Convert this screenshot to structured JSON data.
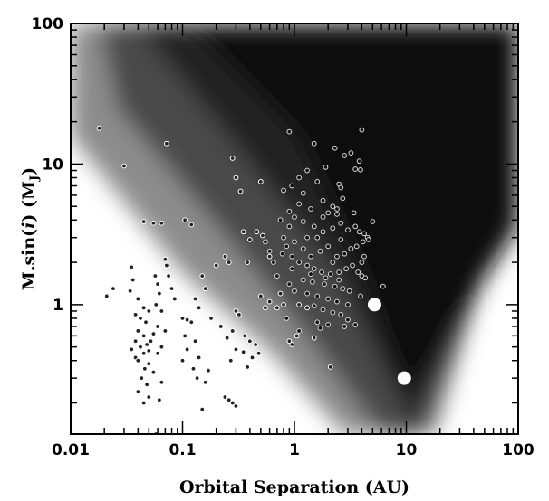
{
  "chart_data": {
    "type": "scatter",
    "xlabel": "Orbital Separation (AU)",
    "ylabel_parts": [
      "M.sin(",
      "i",
      ") (M",
      "J",
      ")"
    ],
    "x_scale": "log",
    "y_scale": "log",
    "xlim": [
      0.01,
      100
    ],
    "ylim": [
      0.12,
      100
    ],
    "x_ticks": [
      {
        "value": 0.01,
        "label": "0.01"
      },
      {
        "value": 0.1,
        "label": "0.1"
      },
      {
        "value": 1,
        "label": "1"
      },
      {
        "value": 10,
        "label": "10"
      },
      {
        "value": 100,
        "label": "100"
      }
    ],
    "y_ticks": [
      {
        "value": 1,
        "label": "1"
      },
      {
        "value": 10,
        "label": "10"
      },
      {
        "value": 100,
        "label": "100"
      }
    ],
    "background": {
      "type": "heatmap",
      "colormap": "grayscale",
      "description_values": "detection probability greyscale, dark = high"
    },
    "series": [
      {
        "marker": "small-dot",
        "points": [
          [
            0.018,
            18
          ],
          [
            0.03,
            9.7
          ],
          [
            0.072,
            14
          ],
          [
            0.024,
            1.3
          ],
          [
            0.021,
            1.15
          ],
          [
            0.035,
            1.85
          ],
          [
            0.036,
            1.5
          ],
          [
            0.034,
            1.25
          ],
          [
            0.04,
            1.1
          ],
          [
            0.045,
            0.95
          ],
          [
            0.038,
            0.85
          ],
          [
            0.05,
            0.9
          ],
          [
            0.042,
            0.8
          ],
          [
            0.047,
            0.75
          ],
          [
            0.04,
            0.65
          ],
          [
            0.045,
            0.6
          ],
          [
            0.052,
            0.55
          ],
          [
            0.038,
            0.55
          ],
          [
            0.048,
            0.52
          ],
          [
            0.035,
            0.48
          ],
          [
            0.042,
            0.5
          ],
          [
            0.05,
            0.47
          ],
          [
            0.045,
            0.45
          ],
          [
            0.038,
            0.42
          ],
          [
            0.04,
            0.4
          ],
          [
            0.05,
            0.38
          ],
          [
            0.046,
            0.35
          ],
          [
            0.055,
            0.33
          ],
          [
            0.043,
            0.3
          ],
          [
            0.048,
            0.27
          ],
          [
            0.04,
            0.24
          ],
          [
            0.05,
            0.22
          ],
          [
            0.045,
            0.2
          ],
          [
            0.065,
            0.28
          ],
          [
            0.062,
            0.21
          ],
          [
            0.057,
            1.6
          ],
          [
            0.06,
            1.4
          ],
          [
            0.062,
            1.2
          ],
          [
            0.058,
            1.0
          ],
          [
            0.065,
            0.9
          ],
          [
            0.06,
            0.7
          ],
          [
            0.07,
            0.65
          ],
          [
            0.055,
            0.62
          ],
          [
            0.06,
            0.45
          ],
          [
            0.065,
            0.5
          ],
          [
            0.07,
            2.1
          ],
          [
            0.072,
            1.9
          ],
          [
            0.075,
            1.6
          ],
          [
            0.08,
            1.3
          ],
          [
            0.085,
            1.1
          ],
          [
            0.045,
            3.9
          ],
          [
            0.055,
            3.8
          ],
          [
            0.065,
            3.8
          ],
          [
            0.105,
            4.0
          ],
          [
            0.12,
            3.7
          ],
          [
            0.1,
            0.8
          ],
          [
            0.11,
            0.78
          ],
          [
            0.12,
            0.75
          ],
          [
            0.105,
            0.6
          ],
          [
            0.13,
            0.55
          ],
          [
            0.11,
            0.48
          ],
          [
            0.14,
            0.42
          ],
          [
            0.1,
            0.4
          ],
          [
            0.125,
            0.35
          ],
          [
            0.135,
            0.3
          ],
          [
            0.15,
            0.18
          ],
          [
            0.058,
            0.12
          ],
          [
            0.115,
            0.11
          ],
          [
            0.22,
            0.11
          ],
          [
            0.15,
            1.6
          ],
          [
            0.16,
            1.3
          ],
          [
            0.13,
            1.1
          ],
          [
            0.14,
            0.95
          ],
          [
            0.18,
            0.8
          ],
          [
            0.2,
            1.9
          ],
          [
            0.24,
            2.2
          ],
          [
            0.26,
            2.0
          ],
          [
            0.22,
            0.7
          ],
          [
            0.25,
            0.58
          ],
          [
            0.3,
            0.9
          ],
          [
            0.32,
            0.85
          ],
          [
            0.28,
            0.65
          ],
          [
            0.3,
            0.48
          ],
          [
            0.35,
            0.46
          ],
          [
            0.27,
            0.4
          ],
          [
            0.24,
            0.22
          ],
          [
            0.26,
            0.21
          ],
          [
            0.28,
            0.2
          ],
          [
            0.3,
            0.19
          ],
          [
            0.16,
            0.28
          ],
          [
            0.17,
            0.34
          ],
          [
            0.36,
            0.6
          ],
          [
            0.4,
            0.55
          ],
          [
            0.45,
            0.52
          ],
          [
            0.48,
            0.45
          ],
          [
            0.42,
            0.42
          ],
          [
            0.38,
            0.36
          ],
          [
            0.5,
            1.15
          ],
          [
            0.6,
            1.05
          ],
          [
            0.55,
            0.95
          ],
          [
            0.7,
            0.95
          ],
          [
            0.9,
            0.55
          ],
          [
            0.95,
            0.52
          ],
          [
            1.05,
            0.6
          ],
          [
            1.5,
            0.58
          ],
          [
            2.1,
            0.36
          ],
          [
            0.75,
            1.2
          ],
          [
            0.8,
            1.0
          ],
          [
            1.1,
            1.0
          ],
          [
            1.3,
            0.95
          ],
          [
            0.35,
            3.3
          ],
          [
            0.4,
            2.9
          ],
          [
            0.28,
            11
          ],
          [
            0.3,
            8
          ],
          [
            0.33,
            6.4
          ],
          [
            0.5,
            7.5
          ],
          [
            0.46,
            3.3
          ],
          [
            0.52,
            3.1
          ],
          [
            0.38,
            2.0
          ],
          [
            0.6,
            2.2
          ]
        ]
      },
      {
        "marker": "open-circle",
        "points": [
          [
            0.9,
            17
          ],
          [
            1.5,
            14
          ],
          [
            2.3,
            13
          ],
          [
            3.2,
            12
          ],
          [
            4.0,
            17.5
          ],
          [
            3.8,
            10.5
          ],
          [
            2.8,
            11.5
          ],
          [
            1.9,
            9.5
          ],
          [
            1.3,
            9
          ],
          [
            1.1,
            8
          ],
          [
            0.95,
            7
          ],
          [
            0.8,
            6.5
          ],
          [
            1.2,
            6.2
          ],
          [
            1.6,
            7.5
          ],
          [
            2.5,
            7.2
          ],
          [
            2.6,
            6.8
          ],
          [
            3.5,
            9.2
          ],
          [
            3.9,
            9.1
          ],
          [
            2.2,
            5.0
          ],
          [
            2.4,
            4.8
          ],
          [
            2.0,
            4.5
          ],
          [
            1.8,
            4.2
          ],
          [
            1.4,
            4.8
          ],
          [
            1.1,
            5.2
          ],
          [
            0.9,
            4.6
          ],
          [
            0.75,
            4.0
          ],
          [
            1.5,
            3.6
          ],
          [
            1.8,
            3.3
          ],
          [
            2.2,
            3.5
          ],
          [
            2.6,
            3.8
          ],
          [
            3.0,
            3.4
          ],
          [
            3.5,
            3.6
          ],
          [
            4.2,
            3.2
          ],
          [
            4.5,
            3.0
          ],
          [
            4.1,
            2.8
          ],
          [
            3.6,
            2.6
          ],
          [
            3.2,
            2.5
          ],
          [
            2.8,
            2.3
          ],
          [
            2.4,
            2.2
          ],
          [
            2.0,
            2.6
          ],
          [
            1.7,
            2.4
          ],
          [
            1.4,
            2.2
          ],
          [
            1.2,
            2.5
          ],
          [
            1.0,
            2.8
          ],
          [
            0.85,
            2.6
          ],
          [
            0.95,
            2.2
          ],
          [
            1.1,
            2.0
          ],
          [
            1.3,
            1.9
          ],
          [
            1.5,
            1.8
          ],
          [
            1.75,
            1.7
          ],
          [
            2.1,
            1.65
          ],
          [
            2.5,
            1.7
          ],
          [
            2.9,
            1.8
          ],
          [
            3.3,
            1.9
          ],
          [
            3.7,
            1.7
          ],
          [
            4.0,
            1.6
          ],
          [
            4.3,
            1.55
          ],
          [
            1.2,
            1.5
          ],
          [
            1.45,
            1.45
          ],
          [
            1.85,
            1.4
          ],
          [
            2.3,
            1.35
          ],
          [
            2.7,
            1.3
          ],
          [
            3.1,
            1.25
          ],
          [
            0.9,
            1.4
          ],
          [
            1.0,
            1.25
          ],
          [
            1.3,
            1.2
          ],
          [
            1.6,
            1.15
          ],
          [
            2.0,
            1.1
          ],
          [
            2.4,
            1.05
          ],
          [
            0.7,
            1.6
          ],
          [
            0.65,
            2.0
          ],
          [
            0.6,
            2.4
          ],
          [
            0.55,
            2.8
          ],
          [
            0.8,
            3.0
          ],
          [
            0.9,
            3.6
          ],
          [
            1.0,
            4.2
          ],
          [
            1.2,
            3.9
          ],
          [
            1.8,
            5.5
          ],
          [
            2.7,
            5.7
          ],
          [
            3.4,
            4.5
          ],
          [
            4.0,
            2.0
          ],
          [
            4.6,
            2.9
          ],
          [
            5.0,
            3.9
          ],
          [
            6.2,
            1.35
          ],
          [
            1.5,
            0.98
          ],
          [
            1.8,
            0.92
          ],
          [
            2.2,
            0.88
          ],
          [
            2.6,
            0.85
          ],
          [
            3.0,
            0.78
          ],
          [
            1.6,
            0.75
          ],
          [
            2.0,
            0.72
          ],
          [
            2.8,
            0.7
          ],
          [
            3.5,
            0.72
          ],
          [
            1.1,
            0.65
          ],
          [
            1.7,
            0.68
          ],
          [
            0.85,
            0.8
          ],
          [
            3.0,
            1.0
          ],
          [
            3.9,
            1.15
          ],
          [
            2.2,
            2.0
          ],
          [
            2.6,
            2.9
          ],
          [
            1.3,
            3.0
          ],
          [
            1.6,
            3.0
          ],
          [
            0.95,
            1.8
          ],
          [
            2.4,
            4.4
          ],
          [
            3.8,
            3.3
          ],
          [
            4.2,
            2.2
          ],
          [
            1.9,
            1.55
          ],
          [
            2.5,
            1.5
          ],
          [
            1.4,
            1.65
          ],
          [
            0.78,
            2.3
          ]
        ]
      },
      {
        "marker": "large-white-circle",
        "points": [
          [
            5.2,
            1.0
          ],
          [
            9.6,
            0.3
          ]
        ]
      }
    ]
  }
}
